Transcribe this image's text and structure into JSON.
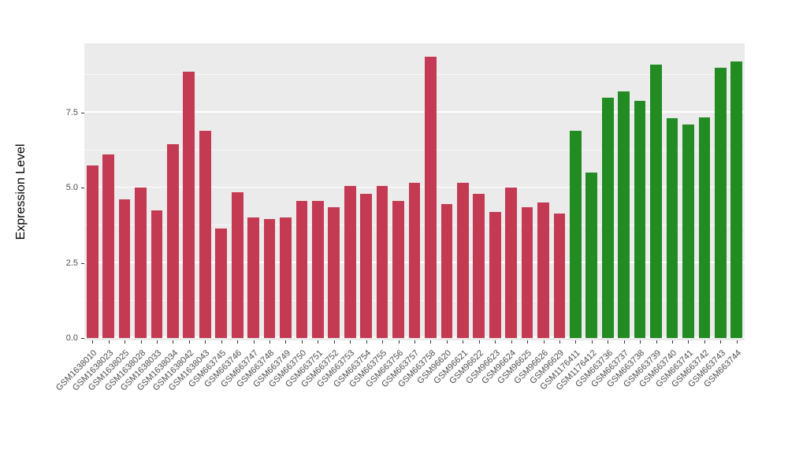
{
  "style": {
    "panel_background": "#EBEBEB",
    "gridline_color": "#FFFFFF",
    "axis_text_color": "#4D4D4D"
  },
  "chart_data": {
    "type": "bar",
    "title": "",
    "xlabel": "",
    "ylabel": "Expression Level",
    "ylim": [
      0,
      9.8
    ],
    "grid": true,
    "legend_position": "none",
    "y_ticks": [
      {
        "value": 0,
        "label": "0.0"
      },
      {
        "value": 2.5,
        "label": "2.5"
      },
      {
        "value": 5,
        "label": "5.0"
      },
      {
        "value": 7.5,
        "label": "7.5"
      }
    ],
    "y_minor": [
      1.25,
      3.75,
      6.25,
      8.75
    ],
    "group_colors": {
      "group1": "#C43A52",
      "group2": "#228B22"
    },
    "categories": [
      "GSM1638010",
      "GSM1638023",
      "GSM1638025",
      "GSM1638028",
      "GSM1638033",
      "GSM1638034",
      "GSM1638042",
      "GSM1638043",
      "GSM663745",
      "GSM663746",
      "GSM663747",
      "GSM663748",
      "GSM663749",
      "GSM663750",
      "GSM663751",
      "GSM663752",
      "GSM663753",
      "GSM663754",
      "GSM663755",
      "GSM663756",
      "GSM663757",
      "GSM663758",
      "GSM96620",
      "GSM96621",
      "GSM96622",
      "GSM96623",
      "GSM96624",
      "GSM96625",
      "GSM96626",
      "GSM96629",
      "GSM1176411",
      "GSM1176412",
      "GSM663736",
      "GSM663737",
      "GSM663738",
      "GSM663739",
      "GSM663740",
      "GSM663741",
      "GSM663742",
      "GSM663743",
      "GSM663744"
    ],
    "values": [
      5.75,
      6.1,
      4.6,
      5.0,
      4.25,
      6.45,
      8.85,
      6.9,
      3.65,
      4.85,
      4.0,
      3.95,
      4.0,
      4.55,
      4.55,
      4.35,
      5.05,
      4.8,
      5.05,
      4.55,
      5.15,
      9.35,
      4.45,
      5.15,
      4.8,
      4.2,
      5.0,
      4.35,
      4.5,
      4.15,
      6.9,
      5.5,
      8.0,
      8.2,
      7.9,
      9.1,
      7.3,
      7.1,
      7.35,
      9.0,
      9.2
    ],
    "groups": [
      "group1",
      "group1",
      "group1",
      "group1",
      "group1",
      "group1",
      "group1",
      "group1",
      "group1",
      "group1",
      "group1",
      "group1",
      "group1",
      "group1",
      "group1",
      "group1",
      "group1",
      "group1",
      "group1",
      "group1",
      "group1",
      "group1",
      "group1",
      "group1",
      "group1",
      "group1",
      "group1",
      "group1",
      "group1",
      "group1",
      "group2",
      "group2",
      "group2",
      "group2",
      "group2",
      "group2",
      "group2",
      "group2",
      "group2",
      "group2",
      "group2"
    ]
  }
}
